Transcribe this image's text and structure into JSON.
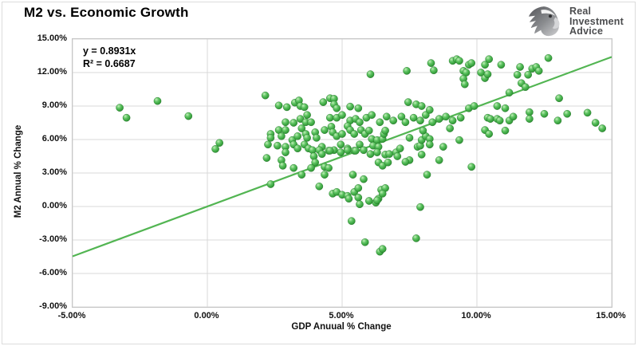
{
  "title": "M2 vs. Economic Growth",
  "logo": {
    "icon": "eagle-icon",
    "line1": "Real",
    "line2": "Investment",
    "line3": "Advice"
  },
  "annotation": {
    "equation": "y = 0.8931x",
    "r_squared": "R² = 0.6687"
  },
  "colors": {
    "point": "#4caf50",
    "trendline": "#52b552",
    "gridline": "#d9d9d9",
    "plot_border": "#c6c6c6",
    "text": "#000000",
    "logo_gray": "#4c4d4f"
  },
  "chart_data": {
    "type": "scatter",
    "title": "M2 vs. Economic Growth",
    "xlabel": "GDP Anuual % Change",
    "ylabel": "M2 Annual % Change",
    "xlim": [
      -5,
      15
    ],
    "ylim": [
      -9,
      15
    ],
    "grid": true,
    "x_tick_values": [
      -5,
      0,
      5,
      10,
      15
    ],
    "x_tick_labels": [
      "-5.00%",
      "0.00%",
      "5.00%",
      "10.00%",
      "15.00%"
    ],
    "y_tick_values": [
      15,
      12,
      9,
      6,
      3,
      0,
      -3,
      -6,
      -9
    ],
    "y_tick_labels": [
      "15.00%",
      "12.00%",
      "9.00%",
      "6.00%",
      "3.00%",
      "0.00%",
      "-3.00%",
      "-6.00%",
      "-9.00%"
    ],
    "trendline": {
      "equation": "y = 0.8931x",
      "slope": 0.8931,
      "intercept": 0,
      "r2": 0.6687,
      "x_range": [
        -5,
        15
      ]
    },
    "points": [
      [
        -3.25,
        8.85
      ],
      [
        -3.0,
        7.95
      ],
      [
        -1.85,
        9.45
      ],
      [
        -0.7,
        8.1
      ],
      [
        0.3,
        5.15
      ],
      [
        0.45,
        5.7
      ],
      [
        2.15,
        9.95
      ],
      [
        2.65,
        9.05
      ],
      [
        2.95,
        8.9
      ],
      [
        3.25,
        9.3
      ],
      [
        3.4,
        9.5
      ],
      [
        3.45,
        9.0
      ],
      [
        3.6,
        8.9
      ],
      [
        4.3,
        9.35
      ],
      [
        4.55,
        9.7
      ],
      [
        4.7,
        9.65
      ],
      [
        4.7,
        9.15
      ],
      [
        4.8,
        8.8
      ],
      [
        5.3,
        8.95
      ],
      [
        5.6,
        8.8
      ],
      [
        2.9,
        7.55
      ],
      [
        3.2,
        7.5
      ],
      [
        3.7,
        8.2
      ],
      [
        3.45,
        7.85
      ],
      [
        3.65,
        7.55
      ],
      [
        3.85,
        7.55
      ],
      [
        4.55,
        7.95
      ],
      [
        4.8,
        7.95
      ],
      [
        5.0,
        8.2
      ],
      [
        5.3,
        7.7
      ],
      [
        5.5,
        7.85
      ],
      [
        5.65,
        7.55
      ],
      [
        5.9,
        7.95
      ],
      [
        2.65,
        6.85
      ],
      [
        2.35,
        6.5
      ],
      [
        2.35,
        6.15
      ],
      [
        2.75,
        6.3
      ],
      [
        2.9,
        6.85
      ],
      [
        3.15,
        5.95
      ],
      [
        3.35,
        6.3
      ],
      [
        3.5,
        7.0
      ],
      [
        3.65,
        6.5
      ],
      [
        3.7,
        6.15
      ],
      [
        4.0,
        6.65
      ],
      [
        4.05,
        6.15
      ],
      [
        4.35,
        6.85
      ],
      [
        4.6,
        7.15
      ],
      [
        4.65,
        6.65
      ],
      [
        4.8,
        6.3
      ],
      [
        5.0,
        6.5
      ],
      [
        5.2,
        7.2
      ],
      [
        5.3,
        6.85
      ],
      [
        5.45,
        6.5
      ],
      [
        5.7,
        6.85
      ],
      [
        5.85,
        6.5
      ],
      [
        6.0,
        6.8
      ],
      [
        2.25,
        5.55
      ],
      [
        2.6,
        5.45
      ],
      [
        2.9,
        5.35
      ],
      [
        3.2,
        5.55
      ],
      [
        3.35,
        5.2
      ],
      [
        3.6,
        5.55
      ],
      [
        3.75,
        5.2
      ],
      [
        3.9,
        5.05
      ],
      [
        4.25,
        5.35
      ],
      [
        4.5,
        5.0
      ],
      [
        4.7,
        5.05
      ],
      [
        4.95,
        5.55
      ],
      [
        5.2,
        5.2
      ],
      [
        5.45,
        5.0
      ],
      [
        5.65,
        5.55
      ],
      [
        5.8,
        5.05
      ],
      [
        2.9,
        4.85
      ],
      [
        4.15,
        5.05
      ],
      [
        4.25,
        4.7
      ],
      [
        4.55,
        5.0
      ],
      [
        4.95,
        4.85
      ],
      [
        5.2,
        5.05
      ],
      [
        5.5,
        5.0
      ],
      [
        2.2,
        4.35
      ],
      [
        2.75,
        4.15
      ],
      [
        2.8,
        3.65
      ],
      [
        3.2,
        3.45
      ],
      [
        3.5,
        2.85
      ],
      [
        3.95,
        4.5
      ],
      [
        4.0,
        3.95
      ],
      [
        3.85,
        3.45
      ],
      [
        4.35,
        3.55
      ],
      [
        4.5,
        3.45
      ],
      [
        4.35,
        2.85
      ],
      [
        2.35,
        2.0
      ],
      [
        4.15,
        1.8
      ],
      [
        4.65,
        1.15
      ],
      [
        4.8,
        1.3
      ],
      [
        5.0,
        1.05
      ],
      [
        5.2,
        0.95
      ],
      [
        5.45,
        1.3
      ],
      [
        5.6,
        1.65
      ],
      [
        5.6,
        0.8
      ],
      [
        5.65,
        0.2
      ],
      [
        5.25,
        0.7
      ],
      [
        5.35,
        -1.3
      ],
      [
        5.85,
        -3.2
      ],
      [
        6.4,
        -4.05
      ],
      [
        6.5,
        -3.8
      ],
      [
        7.75,
        -2.85
      ],
      [
        7.9,
        -0.05
      ],
      [
        6.25,
        0.35
      ],
      [
        6.35,
        0.7
      ],
      [
        6.3,
        0.55
      ],
      [
        6.0,
        0.5
      ],
      [
        5.4,
        2.85
      ],
      [
        5.8,
        2.45
      ],
      [
        8.15,
        2.85
      ],
      [
        9.8,
        3.55
      ],
      [
        8.6,
        4.15
      ],
      [
        6.1,
        6.05
      ],
      [
        6.3,
        5.95
      ],
      [
        6.5,
        6.05
      ],
      [
        6.55,
        6.5
      ],
      [
        6.15,
        5.45
      ],
      [
        6.35,
        5.35
      ],
      [
        6.05,
        4.7
      ],
      [
        6.3,
        4.85
      ],
      [
        6.6,
        4.65
      ],
      [
        6.75,
        4.7
      ],
      [
        6.35,
        3.95
      ],
      [
        6.5,
        3.65
      ],
      [
        6.7,
        3.95
      ],
      [
        7.0,
        4.85
      ],
      [
        7.05,
        4.5
      ],
      [
        7.15,
        5.2
      ],
      [
        7.5,
        6.15
      ],
      [
        7.5,
        4.15
      ],
      [
        7.35,
        4.0
      ],
      [
        7.8,
        5.35
      ],
      [
        7.9,
        5.45
      ],
      [
        7.95,
        5.95
      ],
      [
        8.1,
        6.3
      ],
      [
        8.25,
        6.05
      ],
      [
        8.25,
        5.55
      ],
      [
        7.95,
        4.65
      ],
      [
        8.75,
        5.35
      ],
      [
        9.35,
        5.95
      ],
      [
        6.45,
        1.5
      ],
      [
        6.6,
        1.65
      ],
      [
        6.5,
        1.15
      ],
      [
        6.6,
        6.8
      ],
      [
        8.0,
        6.8
      ],
      [
        9.0,
        7.0
      ],
      [
        10.3,
        6.85
      ],
      [
        10.45,
        6.5
      ],
      [
        11.05,
        6.8
      ],
      [
        6.1,
        8.2
      ],
      [
        6.4,
        7.55
      ],
      [
        6.65,
        8.05
      ],
      [
        6.9,
        7.7
      ],
      [
        7.2,
        8.05
      ],
      [
        7.35,
        7.55
      ],
      [
        7.65,
        7.95
      ],
      [
        7.9,
        7.7
      ],
      [
        8.1,
        8.2
      ],
      [
        8.35,
        7.55
      ],
      [
        8.6,
        7.85
      ],
      [
        8.85,
        8.05
      ],
      [
        9.1,
        7.7
      ],
      [
        9.4,
        7.95
      ],
      [
        7.45,
        9.35
      ],
      [
        7.75,
        9.15
      ],
      [
        7.95,
        9.0
      ],
      [
        8.25,
        8.65
      ],
      [
        9.7,
        8.8
      ],
      [
        9.9,
        9.0
      ],
      [
        6.05,
        11.85
      ],
      [
        7.4,
        12.15
      ],
      [
        8.3,
        12.85
      ],
      [
        8.4,
        12.2
      ],
      [
        9.1,
        13.05
      ],
      [
        9.25,
        13.2
      ],
      [
        9.35,
        13.05
      ],
      [
        9.7,
        12.7
      ],
      [
        9.8,
        12.85
      ],
      [
        9.5,
        12.15
      ],
      [
        9.6,
        12.0
      ],
      [
        9.5,
        11.45
      ],
      [
        9.55,
        10.95
      ],
      [
        10.3,
        12.7
      ],
      [
        10.15,
        12.0
      ],
      [
        10.3,
        11.5
      ],
      [
        10.9,
        12.7
      ],
      [
        11.2,
        10.2
      ],
      [
        10.45,
        13.2
      ],
      [
        11.6,
        12.5
      ],
      [
        12.05,
        12.35
      ],
      [
        12.2,
        12.5
      ],
      [
        12.3,
        12.15
      ],
      [
        12.65,
        13.3
      ],
      [
        10.4,
        11.85
      ],
      [
        11.5,
        11.8
      ],
      [
        11.9,
        11.8
      ],
      [
        11.65,
        11.05
      ],
      [
        11.8,
        10.7
      ],
      [
        13.05,
        9.7
      ],
      [
        10.75,
        9.0
      ],
      [
        11.05,
        8.8
      ],
      [
        10.4,
        7.95
      ],
      [
        10.5,
        7.85
      ],
      [
        10.75,
        7.85
      ],
      [
        10.85,
        7.7
      ],
      [
        11.2,
        7.7
      ],
      [
        11.35,
        8.05
      ],
      [
        11.95,
        8.45
      ],
      [
        11.95,
        7.85
      ],
      [
        12.5,
        8.3
      ],
      [
        13.0,
        7.7
      ],
      [
        13.35,
        8.3
      ],
      [
        14.1,
        8.4
      ],
      [
        14.4,
        7.5
      ],
      [
        14.65,
        7.0
      ]
    ]
  }
}
